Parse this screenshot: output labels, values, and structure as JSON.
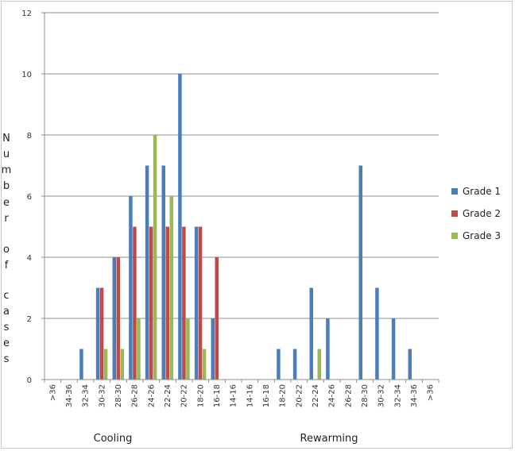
{
  "chart_data": {
    "type": "bar",
    "categories": [
      ">36",
      "34-36",
      "32-34",
      "30-32",
      "28-30",
      "26-28",
      "24-26",
      "22-24",
      "20-22",
      "18-20",
      "16-18",
      "14-16",
      "14-16",
      "16-18",
      "18-20",
      "20-22",
      "22-24",
      "24-26",
      "26-28",
      "28-30",
      "30-32",
      "32-34",
      "34-36",
      ">36"
    ],
    "series": [
      {
        "name": "Grade 1",
        "color": "#4a7ebb",
        "values": [
          0,
          0,
          1,
          3,
          4,
          6,
          7,
          7,
          10,
          5,
          2,
          0,
          0,
          0,
          1,
          1,
          3,
          2,
          0,
          7,
          3,
          2,
          1,
          0
        ]
      },
      {
        "name": "Grade 2",
        "color": "#be4b48",
        "values": [
          0,
          0,
          0,
          3,
          4,
          5,
          5,
          5,
          5,
          5,
          4,
          0,
          0,
          0,
          0,
          0,
          0,
          0,
          0,
          0,
          0,
          0,
          0,
          0
        ]
      },
      {
        "name": "Grade 3",
        "color": "#98b954",
        "values": [
          0,
          0,
          0,
          1,
          1,
          2,
          8,
          6,
          2,
          1,
          0,
          0,
          0,
          0,
          0,
          0,
          1,
          0,
          0,
          0,
          0,
          0,
          0,
          0
        ]
      }
    ],
    "ylim": [
      0,
      12
    ],
    "yticks": [
      "0",
      "2",
      "4",
      "6",
      "8",
      "10",
      "12"
    ],
    "ylabel_letters": [
      "N",
      "u",
      "m",
      "b",
      "e",
      "r",
      "o",
      "f",
      "c",
      "a",
      "s",
      "e",
      "s"
    ],
    "group_labels": [
      "Cooling",
      "Rewarming"
    ],
    "grid": true,
    "legend_position": "right"
  }
}
